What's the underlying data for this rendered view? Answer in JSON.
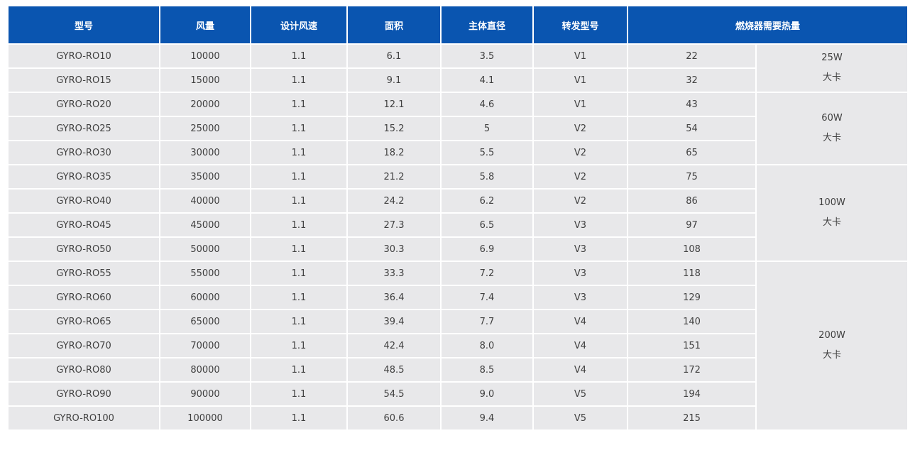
{
  "table": {
    "headers": [
      "型号",
      "风量",
      "设计风速",
      "面积",
      "主体直径",
      "转发型号",
      "燃烧器需要热量"
    ],
    "rows": [
      {
        "model": "GYRO-RO10",
        "airflow": "10000",
        "speed": "1.1",
        "area": "6.1",
        "diameter": "3.5",
        "relay": "V1",
        "heat": "22"
      },
      {
        "model": "GYRO-RO15",
        "airflow": "15000",
        "speed": "1.1",
        "area": "9.1",
        "diameter": "4.1",
        "relay": "V1",
        "heat": "32"
      },
      {
        "model": "GYRO-RO20",
        "airflow": "20000",
        "speed": "1.1",
        "area": "12.1",
        "diameter": "4.6",
        "relay": "V1",
        "heat": "43"
      },
      {
        "model": "GYRO-RO25",
        "airflow": "25000",
        "speed": "1.1",
        "area": "15.2",
        "diameter": "5",
        "relay": "V2",
        "heat": "54"
      },
      {
        "model": "GYRO-RO30",
        "airflow": "30000",
        "speed": "1.1",
        "area": "18.2",
        "diameter": "5.5",
        "relay": "V2",
        "heat": "65"
      },
      {
        "model": "GYRO-RO35",
        "airflow": "35000",
        "speed": "1.1",
        "area": "21.2",
        "diameter": "5.8",
        "relay": "V2",
        "heat": "75"
      },
      {
        "model": "GYRO-RO40",
        "airflow": "40000",
        "speed": "1.1",
        "area": "24.2",
        "diameter": "6.2",
        "relay": "V2",
        "heat": "86"
      },
      {
        "model": "GYRO-RO45",
        "airflow": "45000",
        "speed": "1.1",
        "area": "27.3",
        "diameter": "6.5",
        "relay": "V3",
        "heat": "97"
      },
      {
        "model": "GYRO-RO50",
        "airflow": "50000",
        "speed": "1.1",
        "area": "30.3",
        "diameter": "6.9",
        "relay": "V3",
        "heat": "108"
      },
      {
        "model": "GYRO-RO55",
        "airflow": "55000",
        "speed": "1.1",
        "area": "33.3",
        "diameter": "7.2",
        "relay": "V3",
        "heat": "118"
      },
      {
        "model": "GYRO-RO60",
        "airflow": "60000",
        "speed": "1.1",
        "area": "36.4",
        "diameter": "7.4",
        "relay": "V3",
        "heat": "129"
      },
      {
        "model": "GYRO-RO65",
        "airflow": "65000",
        "speed": "1.1",
        "area": "39.4",
        "diameter": "7.7",
        "relay": "V4",
        "heat": "140"
      },
      {
        "model": "GYRO-RO70",
        "airflow": "70000",
        "speed": "1.1",
        "area": "42.4",
        "diameter": "8.0",
        "relay": "V4",
        "heat": "151"
      },
      {
        "model": "GYRO-RO80",
        "airflow": "80000",
        "speed": "1.1",
        "area": "48.5",
        "diameter": "8.5",
        "relay": "V4",
        "heat": "172"
      },
      {
        "model": "GYRO-RO90",
        "airflow": "90000",
        "speed": "1.1",
        "area": "54.5",
        "diameter": "9.0",
        "relay": "V5",
        "heat": "194"
      },
      {
        "model": "GYRO-RO100",
        "airflow": "100000",
        "speed": "1.1",
        "area": "60.6",
        "diameter": "9.4",
        "relay": "V5",
        "heat": "215"
      }
    ],
    "groups": [
      {
        "rows": 2,
        "line1": "25W",
        "line2": "大卡"
      },
      {
        "rows": 3,
        "line1": "60W",
        "line2": "大卡"
      },
      {
        "rows": 4,
        "line1": "100W",
        "line2": "大卡"
      },
      {
        "rows": 7,
        "line1": "200W",
        "line2": "大卡"
      }
    ],
    "colors": {
      "header_bg": "#0a55b0",
      "header_text": "#ffffff",
      "cell_bg": "#e8e8ea",
      "cell_text": "#404040"
    }
  }
}
